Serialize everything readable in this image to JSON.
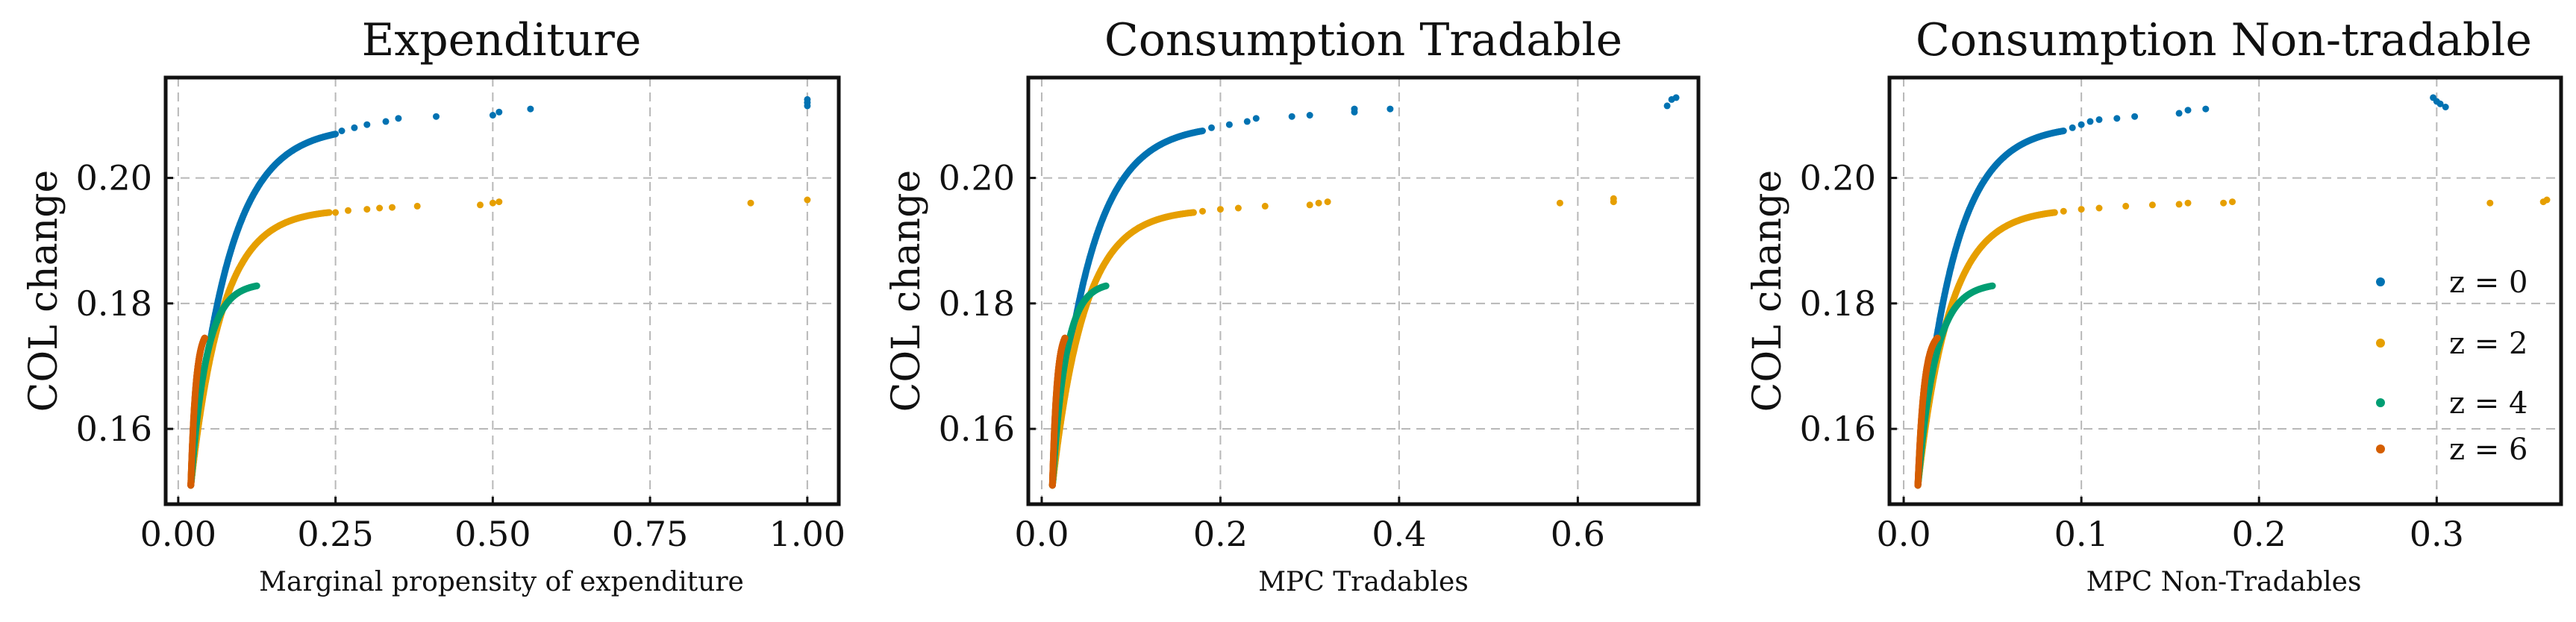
{
  "chart_data": [
    {
      "type": "scatter",
      "title": "Expenditure",
      "xlabel": "Marginal propensity of expenditure",
      "ylabel": "COL change",
      "xlim": [
        -0.02,
        1.05
      ],
      "ylim": [
        0.148,
        0.216
      ],
      "xticks": [
        0.0,
        0.25,
        0.5,
        0.75,
        1.0
      ],
      "xtick_labels": [
        "0.00",
        "0.25",
        "0.50",
        "0.75",
        "1.00"
      ],
      "yticks": [
        0.16,
        0.18,
        0.2
      ],
      "ytick_labels": [
        "0.16",
        "0.18",
        "0.20"
      ],
      "grid": true,
      "series": [
        {
          "color": "#0072B2",
          "curve": {
            "x0": 0.02,
            "xsat": 0.25,
            "y0": 0.151,
            "ysat": 0.207,
            "k": 0.06
          },
          "tail": [
            [
              0.26,
              0.2075
            ],
            [
              0.28,
              0.208
            ],
            [
              0.3,
              0.2085
            ],
            [
              0.33,
              0.209
            ],
            [
              0.35,
              0.2095
            ],
            [
              0.41,
              0.2098
            ],
            [
              0.5,
              0.21
            ],
            [
              0.51,
              0.2105
            ],
            [
              0.56,
              0.211
            ],
            [
              1.0,
              0.212
            ],
            [
              1.0,
              0.2125
            ],
            [
              1.0,
              0.2115
            ]
          ]
        },
        {
          "color": "#E69F00",
          "curve": {
            "x0": 0.02,
            "xsat": 0.24,
            "y0": 0.151,
            "ysat": 0.1945,
            "k": 0.05
          },
          "tail": [
            [
              0.25,
              0.1945
            ],
            [
              0.27,
              0.1948
            ],
            [
              0.3,
              0.195
            ],
            [
              0.32,
              0.1952
            ],
            [
              0.34,
              0.1953
            ],
            [
              0.38,
              0.1955
            ],
            [
              0.48,
              0.1957
            ],
            [
              0.5,
              0.196
            ],
            [
              0.51,
              0.1962
            ],
            [
              0.91,
              0.196
            ],
            [
              1.0,
              0.1965
            ]
          ]
        },
        {
          "color": "#009E73",
          "curve": {
            "x0": 0.02,
            "xsat": 0.125,
            "y0": 0.151,
            "ysat": 0.1828,
            "k": 0.025
          },
          "tail": []
        },
        {
          "color": "#D55E00",
          "curve": {
            "x0": 0.02,
            "xsat": 0.042,
            "y0": 0.151,
            "ysat": 0.1745,
            "k": 0.008
          },
          "tail": []
        }
      ]
    },
    {
      "type": "scatter",
      "title": "Consumption Tradable",
      "xlabel": "MPC Tradables",
      "ylabel": "COL change",
      "xlim": [
        -0.015,
        0.735
      ],
      "ylim": [
        0.148,
        0.216
      ],
      "xticks": [
        0.0,
        0.2,
        0.4,
        0.6
      ],
      "xtick_labels": [
        "0.0",
        "0.2",
        "0.4",
        "0.6"
      ],
      "yticks": [
        0.16,
        0.18,
        0.2
      ],
      "ytick_labels": [
        "0.16",
        "0.18",
        "0.20"
      ],
      "grid": true,
      "series": [
        {
          "color": "#0072B2",
          "curve": {
            "x0": 0.012,
            "xsat": 0.18,
            "y0": 0.151,
            "ysat": 0.2075,
            "k": 0.042
          },
          "tail": [
            [
              0.19,
              0.208
            ],
            [
              0.21,
              0.2085
            ],
            [
              0.23,
              0.209
            ],
            [
              0.24,
              0.2095
            ],
            [
              0.28,
              0.2098
            ],
            [
              0.3,
              0.21
            ],
            [
              0.35,
              0.2105
            ],
            [
              0.35,
              0.211
            ],
            [
              0.39,
              0.211
            ],
            [
              0.7,
              0.2115
            ],
            [
              0.705,
              0.2125
            ],
            [
              0.71,
              0.2128
            ]
          ]
        },
        {
          "color": "#E69F00",
          "curve": {
            "x0": 0.012,
            "xsat": 0.17,
            "y0": 0.151,
            "ysat": 0.1945,
            "k": 0.036
          },
          "tail": [
            [
              0.18,
              0.1947
            ],
            [
              0.2,
              0.195
            ],
            [
              0.22,
              0.1952
            ],
            [
              0.25,
              0.1955
            ],
            [
              0.3,
              0.1957
            ],
            [
              0.31,
              0.196
            ],
            [
              0.32,
              0.1962
            ],
            [
              0.58,
              0.196
            ],
            [
              0.64,
              0.1962
            ],
            [
              0.64,
              0.1967
            ]
          ]
        },
        {
          "color": "#009E73",
          "curve": {
            "x0": 0.012,
            "xsat": 0.072,
            "y0": 0.151,
            "ysat": 0.1828,
            "k": 0.015
          },
          "tail": []
        },
        {
          "color": "#D55E00",
          "curve": {
            "x0": 0.012,
            "xsat": 0.026,
            "y0": 0.151,
            "ysat": 0.1745,
            "k": 0.005
          },
          "tail": []
        }
      ]
    },
    {
      "type": "scatter",
      "title": "Consumption Non-tradable",
      "xlabel": "MPC Non-Tradables",
      "ylabel": "COL change",
      "xlim": [
        -0.008,
        0.37
      ],
      "ylim": [
        0.148,
        0.216
      ],
      "xticks": [
        0.0,
        0.1,
        0.2,
        0.3
      ],
      "xtick_labels": [
        "0.0",
        "0.1",
        "0.2",
        "0.3"
      ],
      "yticks": [
        0.16,
        0.18,
        0.2
      ],
      "ytick_labels": [
        "0.16",
        "0.18",
        "0.20"
      ],
      "grid": true,
      "legend_position": "right",
      "legend": [
        "z = 0",
        "z = 2",
        "z = 4",
        "z = 6"
      ],
      "series": [
        {
          "color": "#0072B2",
          "curve": {
            "x0": 0.008,
            "xsat": 0.09,
            "y0": 0.151,
            "ysat": 0.2075,
            "k": 0.02
          },
          "tail": [
            [
              0.095,
              0.208
            ],
            [
              0.1,
              0.2085
            ],
            [
              0.105,
              0.209
            ],
            [
              0.11,
              0.2093
            ],
            [
              0.12,
              0.2095
            ],
            [
              0.13,
              0.2098
            ],
            [
              0.155,
              0.2103
            ],
            [
              0.16,
              0.2108
            ],
            [
              0.17,
              0.211
            ],
            [
              0.298,
              0.2128
            ],
            [
              0.3,
              0.2122
            ],
            [
              0.302,
              0.2118
            ],
            [
              0.305,
              0.2113
            ]
          ]
        },
        {
          "color": "#E69F00",
          "curve": {
            "x0": 0.008,
            "xsat": 0.085,
            "y0": 0.151,
            "ysat": 0.1945,
            "k": 0.018
          },
          "tail": [
            [
              0.09,
              0.1947
            ],
            [
              0.1,
              0.195
            ],
            [
              0.11,
              0.1952
            ],
            [
              0.125,
              0.1955
            ],
            [
              0.14,
              0.1957
            ],
            [
              0.155,
              0.1958
            ],
            [
              0.16,
              0.196
            ],
            [
              0.18,
              0.196
            ],
            [
              0.185,
              0.1962
            ],
            [
              0.33,
              0.196
            ],
            [
              0.36,
              0.1962
            ],
            [
              0.362,
              0.1965
            ]
          ]
        },
        {
          "color": "#009E73",
          "curve": {
            "x0": 0.008,
            "xsat": 0.05,
            "y0": 0.151,
            "ysat": 0.1828,
            "k": 0.01
          },
          "tail": []
        },
        {
          "color": "#D55E00",
          "curve": {
            "x0": 0.008,
            "xsat": 0.019,
            "y0": 0.151,
            "ysat": 0.1745,
            "k": 0.0035
          },
          "tail": []
        }
      ]
    }
  ]
}
